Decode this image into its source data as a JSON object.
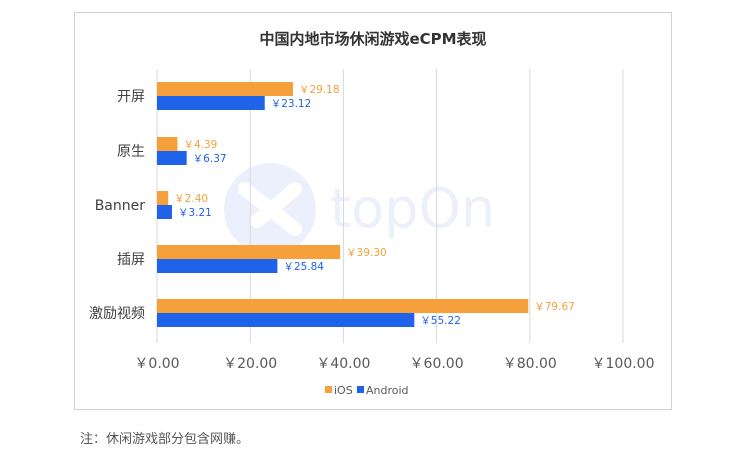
{
  "chart_data": {
    "type": "bar",
    "orientation": "horizontal",
    "title": "中国内地市场休闲游戏eCPM表现",
    "categories": [
      "开屏",
      "原生",
      "Banner",
      "插屏",
      "激励视频"
    ],
    "series": [
      {
        "name": "iOS",
        "color": "#F5A03A",
        "values": [
          29.18,
          4.39,
          2.4,
          39.3,
          79.67
        ],
        "labels": [
          "￥29.18",
          "￥4.39",
          "￥2.40",
          "￥39.30",
          "￥79.67"
        ]
      },
      {
        "name": "Android",
        "color": "#1E63E9",
        "values": [
          23.12,
          6.37,
          3.21,
          25.84,
          55.22
        ],
        "labels": [
          "￥23.12",
          "￥6.37",
          "￥3.21",
          "￥25.84",
          "￥55.22"
        ]
      }
    ],
    "xlim": [
      0,
      100
    ],
    "xticks": [
      0,
      20,
      40,
      60,
      80,
      100
    ],
    "xtick_labels": [
      "￥0.00",
      "￥20.00",
      "￥40.00",
      "￥60.00",
      "￥80.00",
      "￥100.00"
    ],
    "grid": "vertical",
    "legend": "bottom"
  },
  "watermark": {
    "text": "topOn"
  },
  "note": "注：休闲游戏部分包含网赚。"
}
